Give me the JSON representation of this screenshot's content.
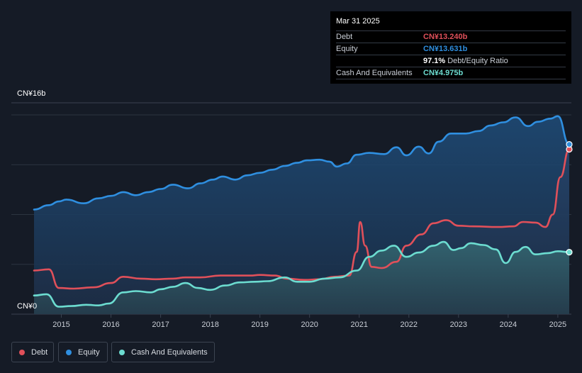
{
  "tooltip": {
    "date": "Mar 31 2025",
    "rows": [
      {
        "name": "Debt",
        "value": "CN¥13.240b",
        "color": "#e0505a",
        "sub": ""
      },
      {
        "name": "Equity",
        "value": "CN¥13.631b",
        "color": "#2f8fe0",
        "sub": ""
      },
      {
        "name": "",
        "value": "97.1%",
        "color": "#ffffff",
        "sub": "Debt/Equity Ratio"
      },
      {
        "name": "Cash And Equivalents",
        "value": "CN¥4.975b",
        "color": "#6cdcd0",
        "sub": ""
      }
    ]
  },
  "legend": [
    {
      "label": "Debt",
      "color": "#e0505a"
    },
    {
      "label": "Equity",
      "color": "#2f8fe0"
    },
    {
      "label": "Cash And Equivalents",
      "color": "#6cdcd0"
    }
  ],
  "chart_data": {
    "type": "area",
    "ylim": [
      0,
      16
    ],
    "y_tick_labels": {
      "top": "CN¥16b",
      "bottom": "CN¥0"
    },
    "x_ticks": [
      2015,
      2016,
      2017,
      2018,
      2019,
      2020,
      2021,
      2022,
      2023,
      2024,
      2025
    ],
    "x_range": [
      2014.45,
      2025.23
    ],
    "series": [
      {
        "name": "Debt",
        "color": "#e0505a",
        "points": [
          [
            2014.45,
            3.5
          ],
          [
            2014.75,
            3.6
          ],
          [
            2014.95,
            2.1
          ],
          [
            2015.25,
            2.05
          ],
          [
            2015.65,
            2.15
          ],
          [
            2016.0,
            2.5
          ],
          [
            2016.25,
            3.0
          ],
          [
            2016.6,
            2.85
          ],
          [
            2016.9,
            2.8
          ],
          [
            2017.25,
            2.85
          ],
          [
            2017.5,
            2.95
          ],
          [
            2017.8,
            2.95
          ],
          [
            2018.2,
            3.1
          ],
          [
            2018.8,
            3.1
          ],
          [
            2019.0,
            3.15
          ],
          [
            2019.3,
            3.1
          ],
          [
            2019.55,
            2.85
          ],
          [
            2019.9,
            2.75
          ],
          [
            2020.2,
            2.8
          ],
          [
            2020.5,
            3.0
          ],
          [
            2020.8,
            3.1
          ],
          [
            2020.95,
            5.0
          ],
          [
            2021.02,
            7.4
          ],
          [
            2021.12,
            5.5
          ],
          [
            2021.25,
            3.8
          ],
          [
            2021.45,
            3.7
          ],
          [
            2021.75,
            4.2
          ],
          [
            2021.95,
            5.5
          ],
          [
            2022.25,
            6.4
          ],
          [
            2022.5,
            7.3
          ],
          [
            2022.75,
            7.55
          ],
          [
            2023.0,
            7.1
          ],
          [
            2023.3,
            7.05
          ],
          [
            2023.8,
            7.0
          ],
          [
            2024.1,
            7.05
          ],
          [
            2024.3,
            7.4
          ],
          [
            2024.55,
            7.35
          ],
          [
            2024.75,
            7.0
          ],
          [
            2024.9,
            8.0
          ],
          [
            2025.05,
            11.0
          ],
          [
            2025.23,
            13.24
          ]
        ]
      },
      {
        "name": "Equity",
        "color": "#2f8fe0",
        "points": [
          [
            2014.45,
            8.4
          ],
          [
            2014.75,
            8.75
          ],
          [
            2014.95,
            9.05
          ],
          [
            2015.1,
            9.2
          ],
          [
            2015.45,
            8.9
          ],
          [
            2015.75,
            9.3
          ],
          [
            2016.0,
            9.5
          ],
          [
            2016.25,
            9.8
          ],
          [
            2016.5,
            9.55
          ],
          [
            2016.75,
            9.8
          ],
          [
            2017.0,
            10.05
          ],
          [
            2017.25,
            10.4
          ],
          [
            2017.55,
            10.1
          ],
          [
            2017.8,
            10.5
          ],
          [
            2018.05,
            10.8
          ],
          [
            2018.25,
            11.05
          ],
          [
            2018.5,
            10.8
          ],
          [
            2018.75,
            11.15
          ],
          [
            2019.0,
            11.35
          ],
          [
            2019.25,
            11.6
          ],
          [
            2019.5,
            11.9
          ],
          [
            2019.75,
            12.15
          ],
          [
            2019.95,
            12.35
          ],
          [
            2020.2,
            12.4
          ],
          [
            2020.4,
            12.25
          ],
          [
            2020.55,
            11.85
          ],
          [
            2020.75,
            12.1
          ],
          [
            2020.95,
            12.8
          ],
          [
            2021.2,
            12.95
          ],
          [
            2021.5,
            12.85
          ],
          [
            2021.75,
            13.4
          ],
          [
            2021.95,
            12.75
          ],
          [
            2022.2,
            13.45
          ],
          [
            2022.4,
            12.9
          ],
          [
            2022.6,
            13.85
          ],
          [
            2022.85,
            14.5
          ],
          [
            2023.15,
            14.5
          ],
          [
            2023.4,
            14.7
          ],
          [
            2023.65,
            15.15
          ],
          [
            2023.9,
            15.4
          ],
          [
            2024.15,
            15.8
          ],
          [
            2024.4,
            15.1
          ],
          [
            2024.6,
            15.45
          ],
          [
            2024.85,
            15.7
          ],
          [
            2025.0,
            15.9
          ],
          [
            2025.23,
            13.631
          ]
        ]
      },
      {
        "name": "Cash And Equivalents",
        "color": "#6cdcd0",
        "points": [
          [
            2014.45,
            1.5
          ],
          [
            2014.7,
            1.6
          ],
          [
            2014.95,
            0.6
          ],
          [
            2015.2,
            0.65
          ],
          [
            2015.5,
            0.75
          ],
          [
            2015.75,
            0.7
          ],
          [
            2015.95,
            0.85
          ],
          [
            2016.25,
            1.75
          ],
          [
            2016.5,
            1.85
          ],
          [
            2016.8,
            1.75
          ],
          [
            2017.0,
            2.0
          ],
          [
            2017.25,
            2.2
          ],
          [
            2017.5,
            2.5
          ],
          [
            2017.75,
            2.1
          ],
          [
            2018.0,
            1.95
          ],
          [
            2018.3,
            2.3
          ],
          [
            2018.6,
            2.55
          ],
          [
            2018.9,
            2.6
          ],
          [
            2019.15,
            2.65
          ],
          [
            2019.5,
            2.95
          ],
          [
            2019.75,
            2.6
          ],
          [
            2020.0,
            2.6
          ],
          [
            2020.3,
            2.85
          ],
          [
            2020.6,
            2.95
          ],
          [
            2020.95,
            3.5
          ],
          [
            2021.2,
            4.6
          ],
          [
            2021.45,
            5.1
          ],
          [
            2021.7,
            5.5
          ],
          [
            2021.95,
            4.6
          ],
          [
            2022.2,
            4.95
          ],
          [
            2022.5,
            5.5
          ],
          [
            2022.7,
            5.8
          ],
          [
            2022.9,
            5.15
          ],
          [
            2023.05,
            5.3
          ],
          [
            2023.25,
            5.7
          ],
          [
            2023.5,
            5.55
          ],
          [
            2023.75,
            5.2
          ],
          [
            2023.95,
            4.1
          ],
          [
            2024.15,
            5.0
          ],
          [
            2024.35,
            5.4
          ],
          [
            2024.55,
            4.8
          ],
          [
            2024.8,
            4.9
          ],
          [
            2025.0,
            5.05
          ],
          [
            2025.23,
            4.975
          ]
        ]
      }
    ]
  }
}
